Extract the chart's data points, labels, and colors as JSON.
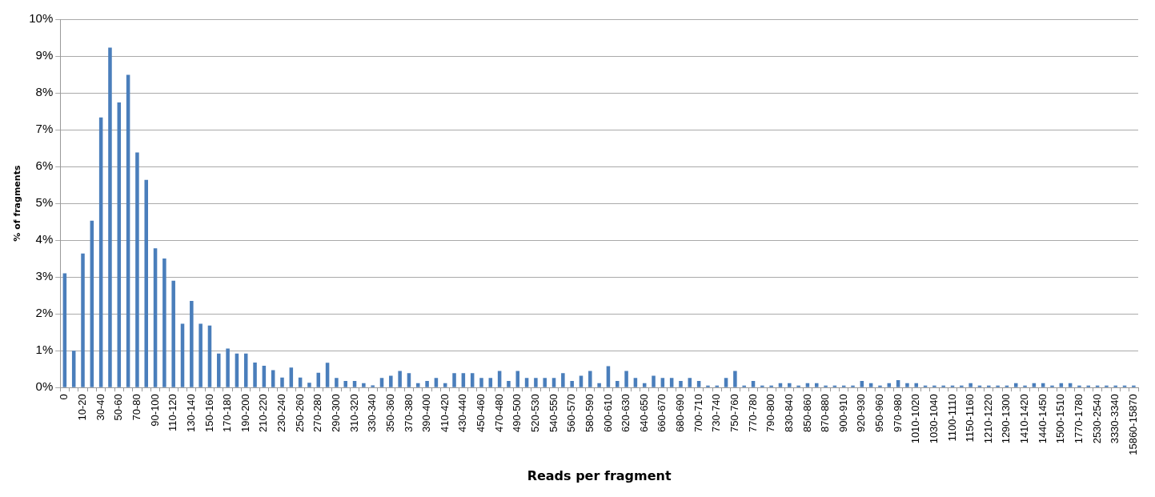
{
  "chart_data": {
    "type": "bar",
    "xlabel": "Reads per fragment",
    "ylabel": "% of fragments",
    "categories": [
      "0",
      null,
      "10-20",
      null,
      "30-40",
      null,
      "50-60",
      null,
      "70-80",
      null,
      "90-100",
      null,
      "110-120",
      null,
      "130-140",
      null,
      "150-160",
      null,
      "170-180",
      null,
      "190-200",
      null,
      "210-220",
      null,
      "230-240",
      null,
      "250-260",
      null,
      "270-280",
      null,
      "290-300",
      null,
      "310-320",
      null,
      "330-340",
      null,
      "350-360",
      null,
      "370-380",
      null,
      "390-400",
      null,
      "410-420",
      null,
      "430-440",
      null,
      "450-460",
      null,
      "470-480",
      null,
      "490-500",
      null,
      "520-530",
      null,
      "540-550",
      null,
      "560-570",
      null,
      "580-590",
      null,
      "600-610",
      null,
      "620-630",
      null,
      "640-650",
      null,
      "660-670",
      null,
      "680-690",
      null,
      "700-710",
      null,
      "730-740",
      null,
      "750-760",
      null,
      "770-780",
      null,
      "790-800",
      null,
      "830-840",
      null,
      "850-860",
      null,
      "870-880",
      null,
      "900-910",
      null,
      "920-930",
      null,
      "950-960",
      null,
      "970-980",
      null,
      "1010-1020",
      null,
      "1030-1040",
      null,
      "1100-1110",
      null,
      "1150-1160",
      null,
      "1210-1220",
      null,
      "1290-1300",
      null,
      "1410-1420",
      null,
      "1440-1450",
      null,
      "1500-1510",
      null,
      "1770-1780",
      null,
      "2530-2540",
      null,
      "3330-3340",
      null,
      "15860-15870"
    ],
    "values": [
      3.1,
      1.0,
      3.64,
      4.53,
      7.33,
      9.23,
      7.74,
      8.49,
      6.38,
      5.64,
      3.78,
      3.5,
      2.9,
      1.73,
      2.35,
      1.73,
      1.68,
      0.92,
      1.06,
      0.92,
      0.92,
      0.68,
      0.59,
      0.47,
      0.27,
      0.54,
      0.27,
      0.13,
      0.4,
      0.67,
      0.26,
      0.18,
      0.18,
      0.12,
      0.06,
      0.26,
      0.32,
      0.45,
      0.39,
      0.12,
      0.18,
      0.26,
      0.12,
      0.39,
      0.39,
      0.39,
      0.26,
      0.26,
      0.45,
      0.18,
      0.45,
      0.26,
      0.26,
      0.26,
      0.26,
      0.39,
      0.18,
      0.32,
      0.45,
      0.12,
      0.58,
      0.18,
      0.45,
      0.26,
      0.12,
      0.32,
      0.26,
      0.26,
      0.18,
      0.26,
      0.18,
      0.05,
      0.05,
      0.26,
      0.45,
      0.05,
      0.18,
      0.05,
      0.05,
      0.12,
      0.12,
      0.05,
      0.12,
      0.12,
      0.05,
      0.05,
      0.05,
      0.05,
      0.18,
      0.12,
      0.05,
      0.12,
      0.2,
      0.12,
      0.12,
      0.05,
      0.05,
      0.05,
      0.05,
      0.05,
      0.12,
      0.05,
      0.05,
      0.05,
      0.05,
      0.12,
      0.05,
      0.12,
      0.12,
      0.05,
      0.12,
      0.12,
      0.05,
      0.05,
      0.05,
      0.05,
      0.05,
      0.05,
      0.05
    ],
    "color": "#4a7ebb",
    "ylim": [
      0,
      10
    ],
    "yticks": [
      {
        "value": 0,
        "label": "0%"
      },
      {
        "value": 1,
        "label": "1%"
      },
      {
        "value": 2,
        "label": "2%"
      },
      {
        "value": 3,
        "label": "3%"
      },
      {
        "value": 4,
        "label": "4%"
      },
      {
        "value": 5,
        "label": "5%"
      },
      {
        "value": 6,
        "label": "6%"
      },
      {
        "value": 7,
        "label": "7%"
      },
      {
        "value": 8,
        "label": "8%"
      },
      {
        "value": 9,
        "label": "9%"
      },
      {
        "value": 10,
        "label": "10%"
      }
    ],
    "grid": "y",
    "legend": false
  }
}
